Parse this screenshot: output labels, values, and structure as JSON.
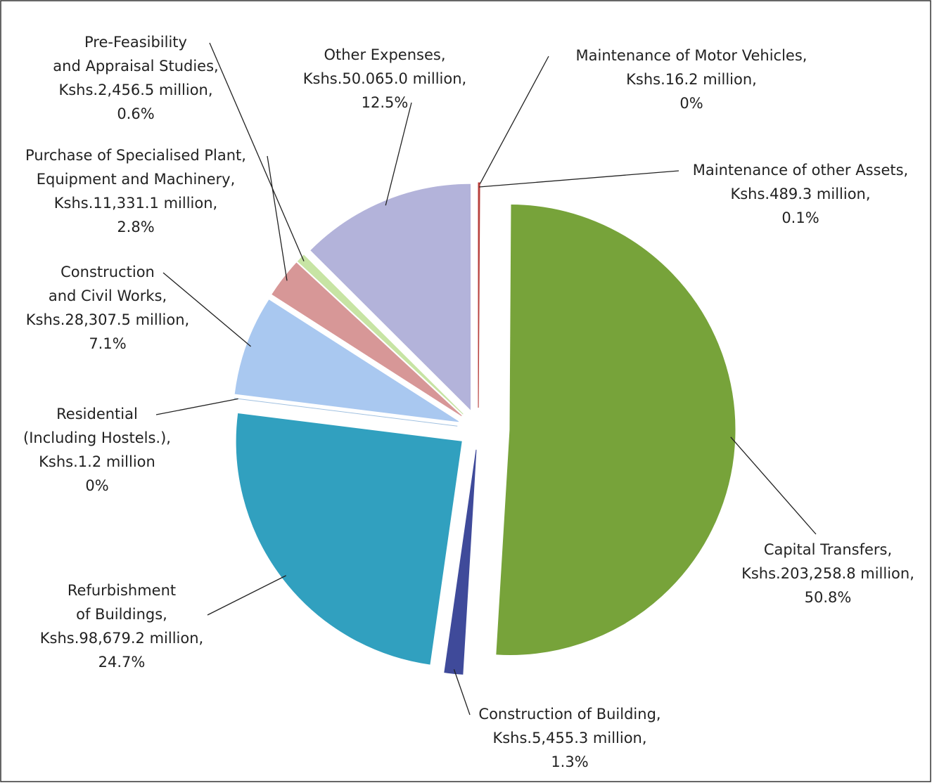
{
  "chart_data": {
    "type": "pie",
    "categories": [
      [
        "Maintenance of Motor Vehicles,"
      ],
      [
        "Maintenance of other Assets,"
      ],
      [
        "Capital Transfers,"
      ],
      [
        "Construction of Building,"
      ],
      [
        "Refurbishment",
        "of Buildings,"
      ],
      [
        "Residential",
        "(Including Hostels.),"
      ],
      [
        "Construction",
        "and Civil Works,"
      ],
      [
        "Purchase of Specialised Plant,",
        "Equipment and Machinery,"
      ],
      [
        "Pre-Feasibility",
        "and Appraisal Studies,"
      ],
      [
        "Other Expenses,"
      ]
    ],
    "values": [
      0,
      0.1,
      50.8,
      1.3,
      24.7,
      0,
      7.1,
      2.8,
      0.6,
      12.5
    ],
    "value_labels": [
      "0%",
      "0.1%",
      "50.8%",
      "1.3%",
      "24.7%",
      "0%",
      "7.1%",
      "2.8%",
      "0.6%",
      "12.5%"
    ],
    "amounts": [
      16.2,
      489.3,
      203258.8,
      5455.3,
      98679.2,
      1.2,
      28307.5,
      11331.1,
      2456.5,
      50065.0
    ],
    "amount_labels": [
      "Kshs.16.2 million,",
      "Kshs.489.3 million,",
      "Kshs.203,258.8 million,",
      "Kshs.5,455.3 million,",
      "Kshs.98,679.2 million,",
      "Kshs.1.2 million",
      "Kshs.28,307.5 million,",
      "Kshs.11,331.1 million,",
      "Kshs.2,456.5 million,",
      "Kshs.50.065.0 million,"
    ],
    "colors": [
      "#c0504d",
      "#b8403d",
      "#77a33a",
      "#3f4a9a",
      "#31a0bf",
      "#a0c0e0",
      "#a9c8f0",
      "#d79797",
      "#c7e4a4",
      "#b3b3da"
    ]
  }
}
